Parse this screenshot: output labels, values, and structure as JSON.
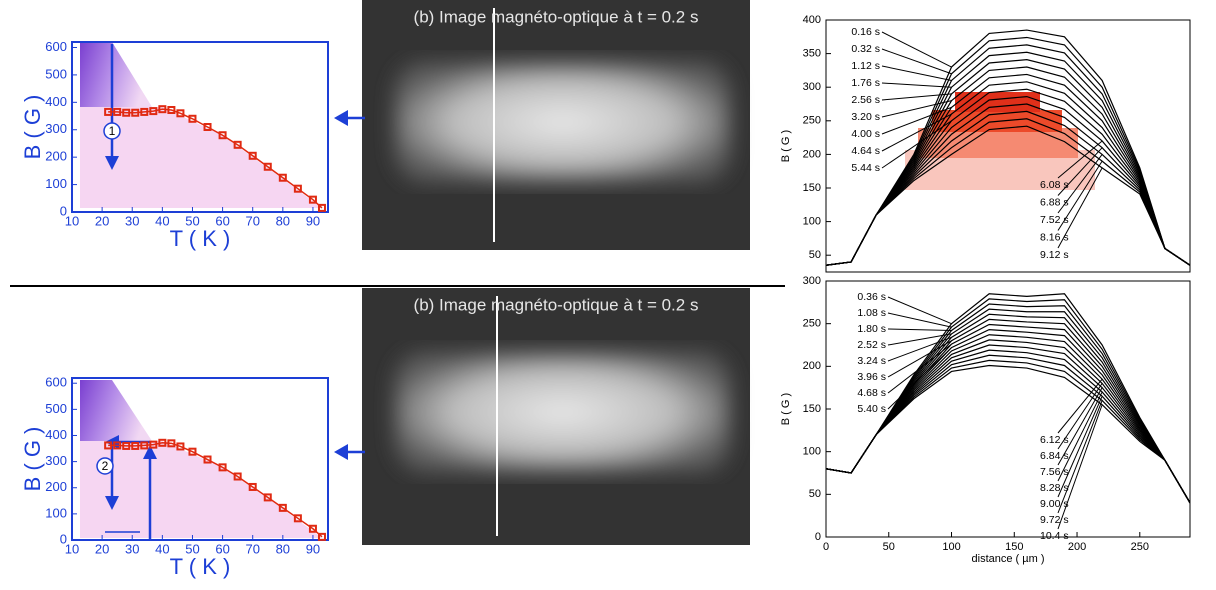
{
  "panels": [
    {
      "caption": "(b) Image magnéto-optique  à  t = 0.2 s"
    },
    {
      "caption": "(b) Image magnéto-optique  à  t = 0.2 s"
    }
  ],
  "chart_data": [
    {
      "type": "line",
      "xlabel": "T ( K )",
      "ylabel": "B ( G )",
      "annotations": [
        "1"
      ],
      "x": [
        22,
        25,
        28,
        31,
        34,
        37,
        40,
        43,
        46,
        50,
        55,
        60,
        65,
        70,
        75,
        80,
        85,
        90,
        93
      ],
      "series": [
        {
          "color": "#e02a12",
          "values": [
            365,
            365,
            362,
            362,
            365,
            368,
            375,
            372,
            360,
            340,
            310,
            280,
            245,
            205,
            165,
            125,
            85,
            45,
            15
          ]
        }
      ],
      "xlim": [
        10,
        95
      ],
      "xticks": [
        10,
        20,
        30,
        40,
        50,
        60,
        70,
        80,
        90
      ],
      "ylim": [
        0,
        620
      ],
      "yticks": [
        0,
        100,
        200,
        300,
        400,
        500,
        600
      ]
    },
    {
      "type": "line",
      "ylabel": "B ( G )",
      "color": "#000000",
      "x": [
        0,
        20,
        40,
        70,
        100,
        130,
        160,
        190,
        220,
        250,
        270,
        290
      ],
      "series": [
        {
          "name": "0.16 s",
          "values": [
            35,
            40,
            110,
            200,
            330,
            380,
            385,
            375,
            310,
            180,
            60,
            35
          ]
        },
        {
          "name": "0.32 s",
          "values": [
            35,
            40,
            110,
            197,
            320,
            369,
            374,
            363,
            300,
            177,
            60,
            35
          ]
        },
        {
          "name": "1.12 s",
          "values": [
            35,
            40,
            110,
            194,
            310,
            358,
            363,
            351,
            290,
            174,
            60,
            35
          ]
        },
        {
          "name": "1.76 s",
          "values": [
            35,
            40,
            110,
            191,
            300,
            347,
            352,
            339,
            280,
            171,
            60,
            35
          ]
        },
        {
          "name": "2.56 s",
          "values": [
            35,
            40,
            110,
            188,
            290,
            336,
            341,
            327,
            270,
            168,
            60,
            35
          ]
        },
        {
          "name": "3.20 s",
          "values": [
            35,
            40,
            110,
            185,
            280,
            325,
            330,
            315,
            260,
            165,
            60,
            35
          ]
        },
        {
          "name": "4.00 s",
          "values": [
            35,
            40,
            110,
            182,
            270,
            314,
            319,
            303,
            250,
            162,
            60,
            35
          ]
        },
        {
          "name": "4.64 s",
          "values": [
            35,
            40,
            110,
            179,
            260,
            303,
            308,
            291,
            240,
            159,
            60,
            35
          ]
        },
        {
          "name": "5.44 s",
          "values": [
            35,
            40,
            110,
            176,
            250,
            292,
            297,
            279,
            230,
            156,
            60,
            35
          ]
        },
        {
          "name": "6.08 s",
          "values": [
            35,
            40,
            110,
            173,
            240,
            281,
            286,
            267,
            220,
            153,
            60,
            35
          ]
        },
        {
          "name": "6.88 s",
          "values": [
            35,
            40,
            110,
            170,
            230,
            270,
            275,
            255,
            210,
            150,
            60,
            35
          ]
        },
        {
          "name": "7.52 s",
          "values": [
            35,
            40,
            110,
            167,
            220,
            259,
            264,
            243,
            200,
            147,
            60,
            35
          ]
        },
        {
          "name": "8.16 s",
          "values": [
            35,
            40,
            110,
            164,
            210,
            248,
            253,
            231,
            190,
            144,
            60,
            35
          ]
        },
        {
          "name": "9.12 s",
          "values": [
            35,
            40,
            110,
            161,
            200,
            237,
            242,
            219,
            180,
            141,
            60,
            35
          ]
        }
      ],
      "xlim": [
        0,
        290
      ],
      "ylim": [
        25,
        400
      ],
      "yticks": [
        50,
        100,
        150,
        200,
        250,
        300,
        350,
        400
      ]
    },
    {
      "type": "line",
      "xlabel": "T ( K )",
      "ylabel": "B ( G )",
      "annotations": [
        "2"
      ],
      "x": [
        22,
        25,
        28,
        31,
        34,
        37,
        40,
        43,
        46,
        50,
        55,
        60,
        65,
        70,
        75,
        80,
        85,
        90,
        93
      ],
      "series": [
        {
          "color": "#e02a12",
          "values": [
            362,
            362,
            360,
            360,
            362,
            365,
            372,
            370,
            358,
            338,
            308,
            278,
            243,
            203,
            163,
            123,
            83,
            43,
            12
          ]
        }
      ],
      "xlim": [
        10,
        95
      ],
      "xticks": [
        10,
        20,
        30,
        40,
        50,
        60,
        70,
        80,
        90
      ],
      "ylim": [
        0,
        620
      ],
      "yticks": [
        0,
        100,
        200,
        300,
        400,
        500,
        600
      ]
    },
    {
      "type": "line",
      "xlabel": "distance ( µm )",
      "ylabel": "B ( G )",
      "color": "#000000",
      "x": [
        0,
        20,
        40,
        70,
        100,
        130,
        160,
        190,
        220,
        250,
        270,
        290
      ],
      "series": [
        {
          "name": "0.36 s",
          "values": [
            80,
            75,
            120,
            190,
            250,
            285,
            282,
            285,
            225,
            140,
            90,
            40
          ]
        },
        {
          "name": "1.08 s",
          "values": [
            80,
            75,
            120,
            188,
            246,
            279,
            276,
            278,
            220,
            138,
            90,
            40
          ]
        },
        {
          "name": "1.80 s",
          "values": [
            80,
            75,
            120,
            186,
            242,
            273,
            270,
            271,
            215,
            136,
            90,
            40
          ]
        },
        {
          "name": "2.52 s",
          "values": [
            80,
            75,
            120,
            184,
            238,
            267,
            264,
            264,
            210,
            134,
            90,
            40
          ]
        },
        {
          "name": "3.24 s",
          "values": [
            80,
            75,
            120,
            182,
            234,
            261,
            258,
            257,
            205,
            132,
            90,
            40
          ]
        },
        {
          "name": "3.96 s",
          "values": [
            80,
            75,
            120,
            180,
            230,
            255,
            252,
            250,
            200,
            130,
            90,
            40
          ]
        },
        {
          "name": "4.68 s",
          "values": [
            80,
            75,
            120,
            178,
            226,
            249,
            246,
            243,
            195,
            128,
            90,
            40
          ]
        },
        {
          "name": "5.40 s",
          "values": [
            80,
            75,
            120,
            176,
            222,
            243,
            240,
            236,
            190,
            126,
            90,
            40
          ]
        },
        {
          "name": "6.12 s",
          "values": [
            80,
            75,
            120,
            174,
            218,
            237,
            234,
            229,
            185,
            124,
            90,
            40
          ]
        },
        {
          "name": "6.84 s",
          "values": [
            80,
            75,
            120,
            172,
            214,
            231,
            228,
            222,
            180,
            122,
            90,
            40
          ]
        },
        {
          "name": "7.56 s",
          "values": [
            80,
            75,
            120,
            170,
            210,
            225,
            222,
            215,
            175,
            120,
            90,
            40
          ]
        },
        {
          "name": "8.28 s",
          "values": [
            80,
            75,
            120,
            168,
            206,
            219,
            216,
            208,
            170,
            118,
            90,
            40
          ]
        },
        {
          "name": "9.00 s",
          "values": [
            80,
            75,
            120,
            166,
            202,
            213,
            210,
            201,
            165,
            116,
            90,
            40
          ]
        },
        {
          "name": "9.72 s",
          "values": [
            80,
            75,
            120,
            164,
            198,
            207,
            204,
            194,
            160,
            114,
            90,
            40
          ]
        },
        {
          "name": "10.4 s",
          "values": [
            80,
            75,
            120,
            162,
            194,
            201,
            198,
            187,
            155,
            112,
            90,
            40
          ]
        }
      ],
      "xlim": [
        0,
        290
      ],
      "xticks": [
        0,
        50,
        100,
        150,
        200,
        250
      ],
      "ylim": [
        0,
        300
      ],
      "yticks": [
        0,
        50,
        100,
        150,
        200,
        250,
        300
      ]
    }
  ]
}
